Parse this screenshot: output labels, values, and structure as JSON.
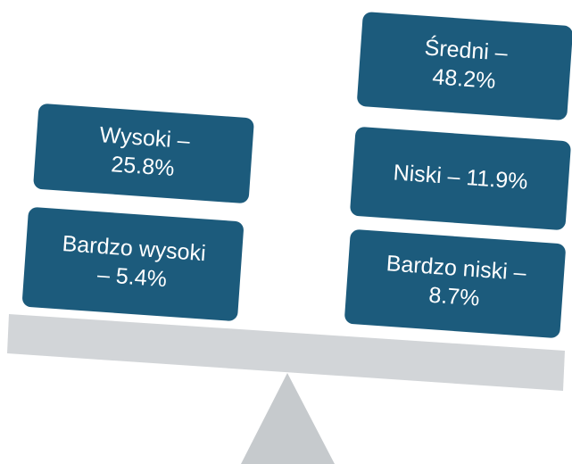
{
  "boxes": [
    {
      "lines": [
        "Wysoki –",
        "25.8%"
      ]
    },
    {
      "lines": [
        "Bardzo wysoki",
        "– 5.4%"
      ]
    },
    {
      "lines": [
        "Średni –",
        "48.2%"
      ]
    },
    {
      "lines": [
        "Niski – 11.9%"
      ]
    },
    {
      "lines": [
        "Bardzo niski –",
        "8.7%"
      ]
    }
  ]
}
